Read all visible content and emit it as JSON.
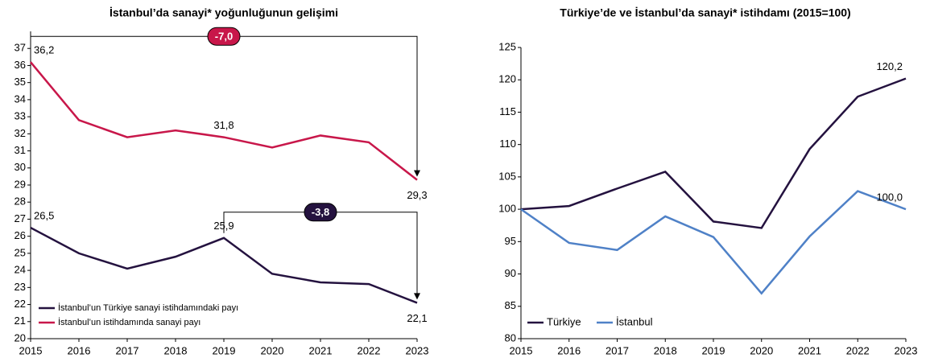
{
  "chart_data": [
    {
      "type": "line",
      "title": "İstanbul’da sanayi* yoğunluğunun gelişimi",
      "categories": [
        "2015",
        "2016",
        "2017",
        "2018",
        "2019",
        "2020",
        "2021",
        "2022",
        "2023"
      ],
      "series": [
        {
          "name": "İstanbul’un Türkiye sanayi istihdamındaki payı",
          "color": "#24123f",
          "values": [
            26.5,
            25.0,
            24.1,
            24.8,
            25.9,
            23.8,
            23.3,
            23.2,
            22.1
          ],
          "value_labels": [
            "26,5",
            null,
            null,
            null,
            "25,9",
            null,
            null,
            null,
            "22,1"
          ]
        },
        {
          "name": "İstanbul’un istihdamında sanayi payı",
          "color": "#c8174a",
          "values": [
            36.2,
            32.8,
            31.8,
            32.2,
            31.8,
            31.2,
            31.9,
            31.5,
            29.3
          ],
          "value_labels": [
            "36,2",
            null,
            null,
            null,
            "31,8",
            null,
            null,
            null,
            "29,3"
          ]
        }
      ],
      "annotations": [
        "-3,8",
        "-7,0"
      ],
      "ylim": [
        20,
        38
      ],
      "yticks": [
        20,
        21,
        22,
        23,
        24,
        25,
        26,
        27,
        28,
        29,
        30,
        31,
        32,
        33,
        34,
        35,
        36,
        37
      ],
      "legend": "lower left"
    },
    {
      "type": "line",
      "title": "Türkiye’de ve İstanbul’da sanayi* istihdamı (2015=100)",
      "categories": [
        "2015",
        "2016",
        "2017",
        "2018",
        "2019",
        "2020",
        "2021",
        "2022",
        "2023"
      ],
      "series": [
        {
          "name": "Türkiye",
          "color": "#24123f",
          "values": [
            100,
            100.5,
            103.2,
            105.8,
            98.1,
            97.1,
            109.3,
            117.4,
            120.2
          ],
          "value_labels": [
            null,
            null,
            null,
            null,
            null,
            null,
            null,
            null,
            "120,2"
          ]
        },
        {
          "name": "İstanbul",
          "color": "#4f81c7",
          "values": [
            100,
            94.8,
            93.7,
            98.9,
            95.7,
            87.0,
            95.8,
            102.8,
            100.0
          ],
          "value_labels": [
            null,
            null,
            null,
            null,
            null,
            null,
            null,
            null,
            "100,0"
          ]
        }
      ],
      "ylim": [
        80,
        125
      ],
      "yticks": [
        80,
        85,
        90,
        95,
        100,
        105,
        110,
        115,
        120,
        125
      ],
      "legend": "lower left"
    }
  ]
}
